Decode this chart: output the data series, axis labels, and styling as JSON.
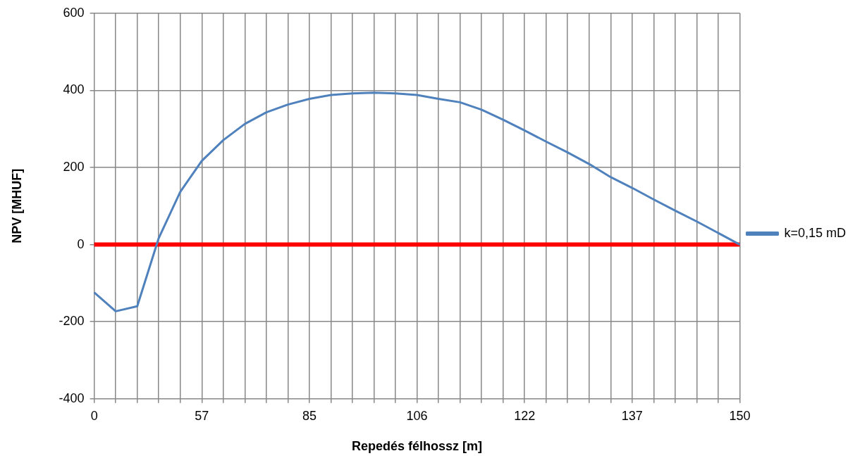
{
  "chart_data": {
    "type": "line",
    "xlabel": "Repedés félhossz [m]",
    "ylabel": "NPV [MHUF]",
    "categories": [
      "0",
      null,
      null,
      null,
      null,
      "57",
      null,
      null,
      null,
      null,
      "85",
      null,
      null,
      null,
      null,
      "106",
      null,
      null,
      null,
      null,
      "122",
      null,
      null,
      null,
      null,
      "137",
      null,
      null,
      null,
      null,
      "150"
    ],
    "series": [
      {
        "name": "k=0,15 mD",
        "color": "#4f81bd",
        "values": [
          -124,
          -173,
          -160,
          17,
          137,
          217,
          271,
          313,
          343,
          363,
          378,
          388,
          392,
          394,
          392,
          388,
          378,
          369,
          350,
          324,
          296,
          267,
          239,
          209,
          175,
          147,
          117,
          88,
          60,
          30,
          0
        ]
      }
    ],
    "ylim": [
      -400,
      600
    ],
    "yticks": [
      -400,
      -200,
      0,
      200,
      400,
      600
    ],
    "ref_lines": [
      {
        "axis": "y",
        "value": 0,
        "color": "#ff0000"
      }
    ],
    "grid": true,
    "legend": "right",
    "marker": "none",
    "line_style": "solid"
  }
}
